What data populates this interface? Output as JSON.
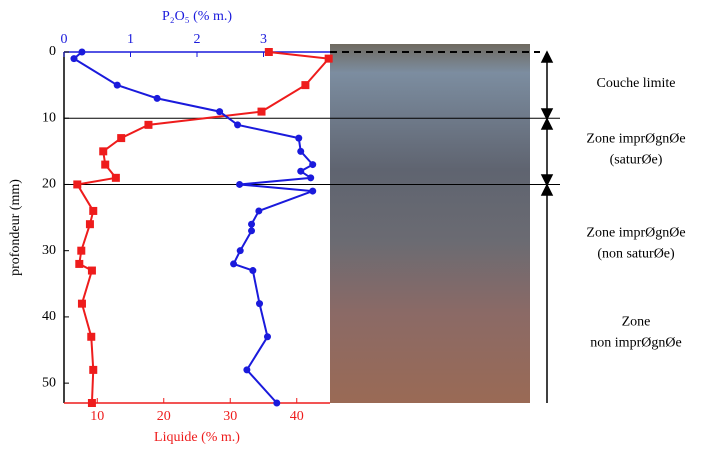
{
  "chart_data": {
    "type": "profile",
    "x_label": "Liquide  (% m.)",
    "x2_label": "P₂O₅ (% m.)",
    "y_label": "profondeur (mm)",
    "xlim": [
      5,
      45
    ],
    "xticks": [
      10,
      20,
      30,
      40
    ],
    "x2lim": [
      0,
      4
    ],
    "x2ticks": [
      0,
      1,
      2,
      3
    ],
    "ylim": [
      0,
      53
    ],
    "yticks": [
      0,
      10,
      20,
      30,
      40,
      50
    ],
    "boundaries": [
      10,
      20
    ],
    "series": [
      {
        "color": "#ee1c1c",
        "marker": "square",
        "axis": "x",
        "depth": [
          0,
          1,
          5,
          9,
          11,
          13,
          15,
          17,
          19,
          20,
          24,
          26,
          30,
          32,
          33,
          38,
          43,
          48,
          53
        ],
        "values": [
          35.8,
          44.8,
          41.3,
          34.7,
          17.7,
          13.6,
          10.9,
          11.2,
          12.8,
          7.0,
          9.4,
          8.9,
          7.6,
          7.3,
          9.2,
          7.7,
          9.1,
          9.4,
          9.2
        ]
      },
      {
        "color": "#1a1adc",
        "marker": "circle",
        "axis": "x2",
        "depth": [
          0,
          1,
          5,
          7,
          9,
          11,
          13,
          15,
          17,
          18,
          19,
          20,
          21,
          24,
          26,
          27,
          30,
          32,
          33,
          38,
          43,
          48,
          53
        ],
        "values": [
          0.27,
          0.15,
          0.8,
          1.4,
          2.34,
          2.61,
          3.53,
          3.56,
          3.74,
          3.56,
          3.71,
          2.64,
          3.74,
          2.93,
          2.82,
          2.82,
          2.65,
          2.55,
          2.84,
          2.94,
          3.06,
          2.75,
          3.2
        ]
      }
    ],
    "zones": [
      {
        "lines": [
          "Couche limite"
        ]
      },
      {
        "lines": [
          "Zone imprØgnØe",
          "(saturØe)"
        ]
      },
      {
        "lines": [
          "Zone imprØgnØe",
          "(non saturØe)"
        ]
      },
      {
        "lines": [
          "Zone",
          "non imprØgnØe"
        ]
      }
    ]
  }
}
